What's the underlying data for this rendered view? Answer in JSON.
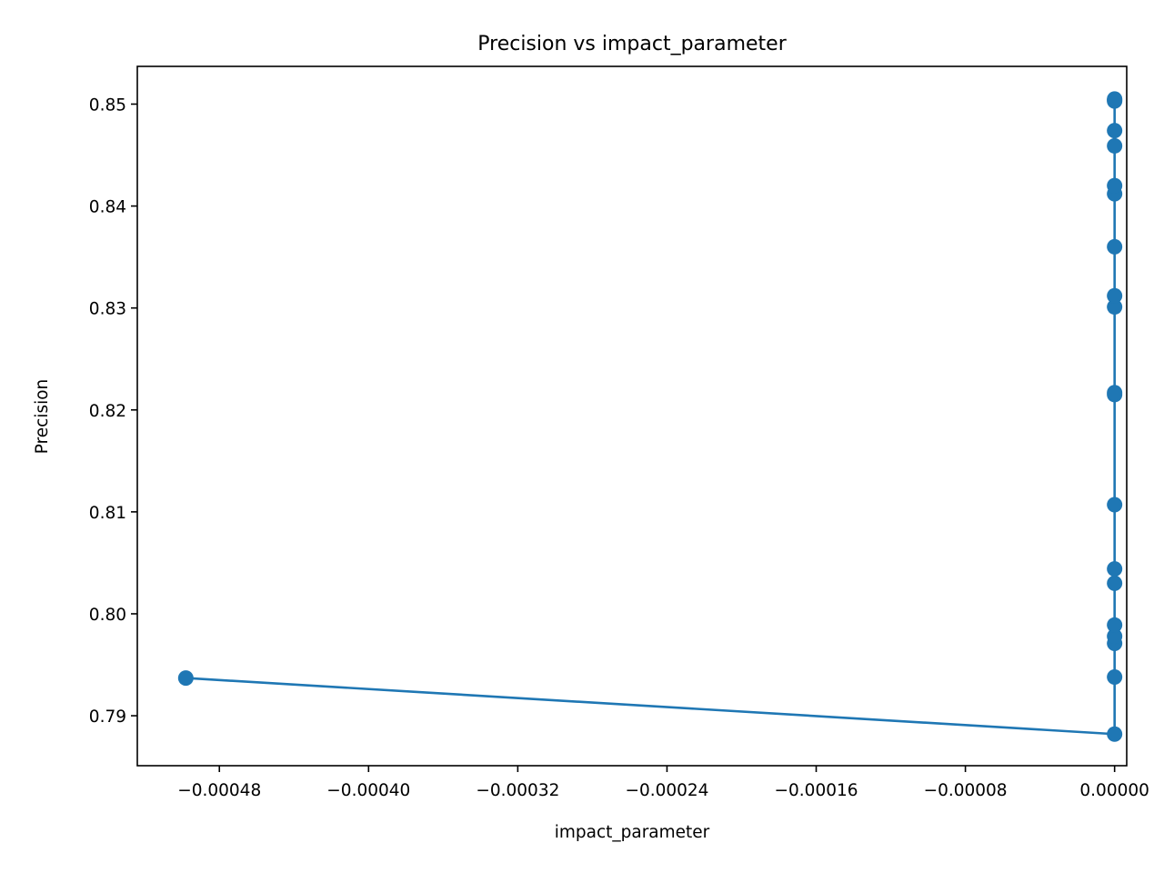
{
  "chart_data": {
    "type": "line",
    "title": "Precision vs impact_parameter",
    "xlabel": "impact_parameter",
    "ylabel": "Precision",
    "xlim": [
      -0.000524,
      6.5e-06
    ],
    "ylim": [
      0.7851,
      0.8537
    ],
    "xticks": [
      -0.00048,
      -0.0004,
      -0.00032,
      -0.00024,
      -0.00016,
      -8e-05,
      0.0
    ],
    "xtick_labels": [
      "−0.00048",
      "−0.00040",
      "−0.00032",
      "−0.00024",
      "−0.00016",
      "−0.00008",
      "0.00000"
    ],
    "yticks": [
      0.79,
      0.8,
      0.81,
      0.82,
      0.83,
      0.84,
      0.85
    ],
    "ytick_labels": [
      "0.79",
      "0.80",
      "0.81",
      "0.82",
      "0.83",
      "0.84",
      "0.85"
    ],
    "grid": false,
    "legend": "none",
    "series": [
      {
        "color": "#1f77b4",
        "marker": "circle",
        "x": [
          -0.000498,
          0.0,
          0.0,
          0.0,
          0.0,
          0.0,
          0.0,
          0.0,
          0.0,
          0.0,
          0.0,
          0.0,
          0.0,
          0.0,
          0.0,
          0.0,
          0.0,
          0.0,
          0.0,
          0.0,
          0.0
        ],
        "y": [
          0.7937,
          0.7882,
          0.7938,
          0.7971,
          0.7978,
          0.7989,
          0.803,
          0.8044,
          0.8107,
          0.8215,
          0.8217,
          0.8301,
          0.8312,
          0.836,
          0.8412,
          0.842,
          0.8459,
          0.8474,
          0.8504,
          0.8505,
          0.8503
        ]
      }
    ]
  }
}
